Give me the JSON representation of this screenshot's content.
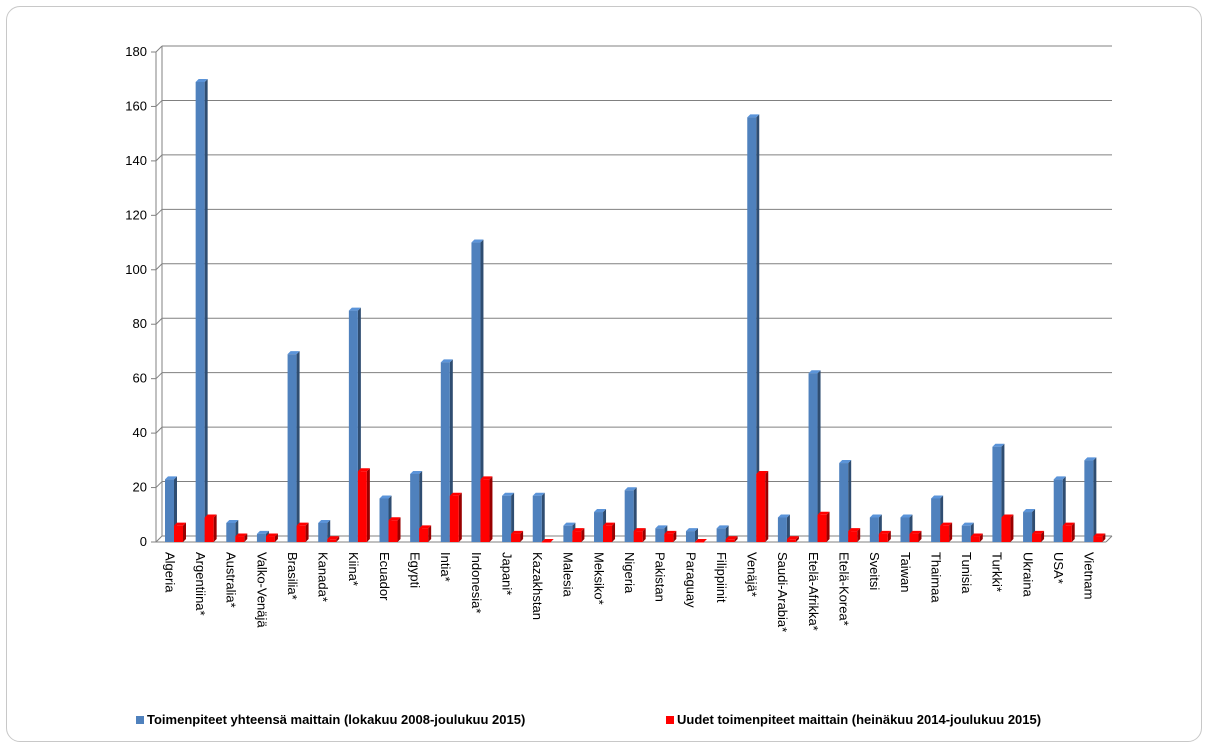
{
  "chart_data": {
    "type": "bar",
    "title": "",
    "xlabel": "",
    "ylabel": "",
    "ylim": [
      0,
      180
    ],
    "yticks": [
      0,
      20,
      40,
      60,
      80,
      100,
      120,
      140,
      160,
      180
    ],
    "grid": true,
    "legend_position": "bottom",
    "categories": [
      "Algeria",
      "Argentiina*",
      "Australia*",
      "Valko-Venäjä",
      "Brasilia*",
      "Kanada*",
      "Kiina*",
      "Ecuador",
      "Egypti",
      "Intia*",
      "Indonesia*",
      "Japani*",
      "Kazakhstan",
      "Malesia",
      "Meksiko*",
      "Nigeria",
      "Pakistan",
      "Paraguay",
      "Filippiinit",
      "Venäjä*",
      "Saudi-Arabia*",
      "Etelä-Afrikka*",
      "Etelä-Korea*",
      "Sveitsi",
      "Taiwan",
      "Thaimaa",
      "Tunisia",
      "Turkki*",
      "Ukraina",
      "USA*",
      "Vietnam"
    ],
    "series": [
      {
        "name": "Toimenpiteet yhteensä maittain (lokakuu 2008-joulukuu 2015)",
        "color": "#4f81bd",
        "values": [
          23,
          169,
          7,
          3,
          69,
          7,
          85,
          16,
          25,
          66,
          110,
          17,
          17,
          6,
          11,
          19,
          5,
          4,
          5,
          156,
          9,
          62,
          29,
          9,
          9,
          16,
          6,
          35,
          11,
          23,
          30
        ]
      },
      {
        "name": "Uudet toimenpiteet maittain (heinäkuu 2014-joulukuu 2015)",
        "color": "#ff0000",
        "values": [
          6,
          9,
          2,
          2,
          6,
          1,
          26,
          8,
          5,
          17,
          23,
          3,
          0,
          4,
          6,
          4,
          3,
          0,
          1,
          25,
          1,
          10,
          4,
          3,
          3,
          6,
          2,
          9,
          3,
          6,
          2
        ]
      }
    ]
  }
}
